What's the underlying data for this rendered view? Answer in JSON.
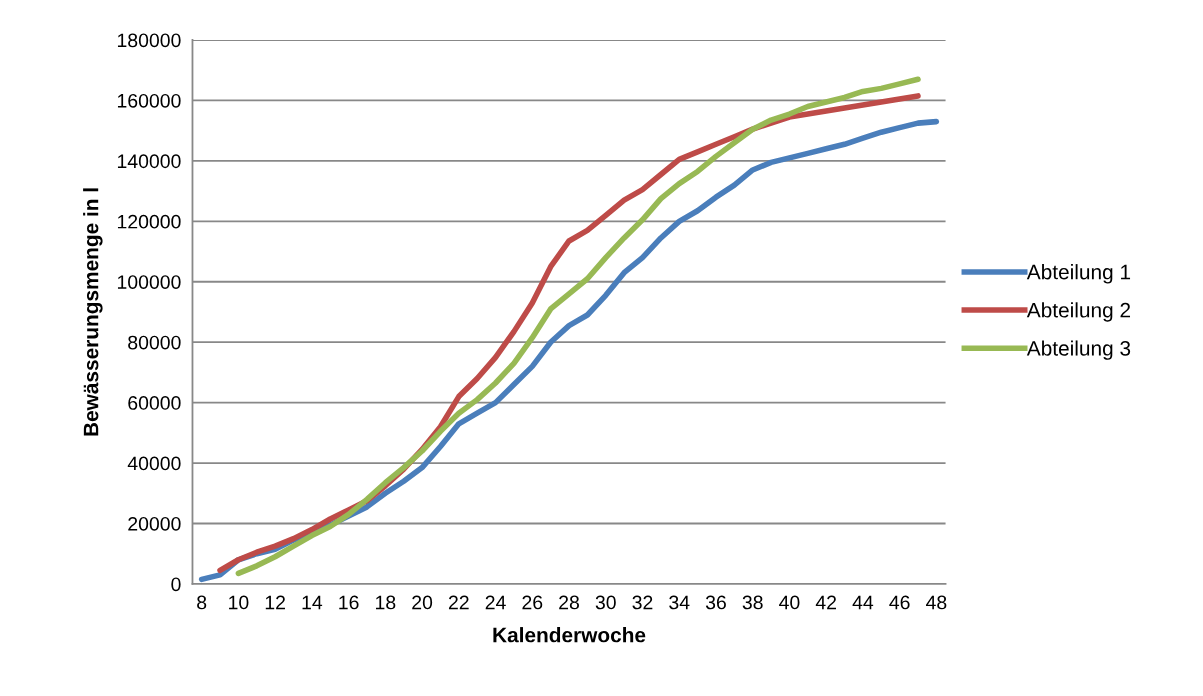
{
  "chart_data": {
    "type": "line",
    "xlabel": "Kalenderwoche",
    "ylabel": "Bewässerungsmenge in l",
    "xlim": [
      7.5,
      48.5
    ],
    "xticks": [
      8,
      10,
      12,
      14,
      16,
      18,
      20,
      22,
      24,
      26,
      28,
      30,
      32,
      34,
      36,
      38,
      40,
      42,
      44,
      46,
      48
    ],
    "ylim": [
      0,
      180000
    ],
    "yticks": [
      0,
      20000,
      40000,
      60000,
      80000,
      100000,
      120000,
      140000,
      160000,
      180000
    ],
    "grid": "y",
    "legend": "right",
    "marker": "none",
    "line_style": "solid",
    "series": [
      {
        "name": "Abteilung 1",
        "color": "#4a7ebb",
        "x": [
          8,
          9,
          10,
          11,
          12,
          13,
          14,
          15,
          16,
          17,
          18,
          19,
          20,
          21,
          22,
          23,
          24,
          25,
          26,
          27,
          28,
          29,
          30,
          31,
          32,
          33,
          34,
          35,
          36,
          37,
          38,
          39,
          40,
          41,
          42,
          43,
          44,
          45,
          46,
          47,
          48
        ],
        "values": [
          1500,
          3000,
          8000,
          10000,
          11500,
          14500,
          17000,
          19500,
          22500,
          25500,
          30000,
          34000,
          38500,
          45500,
          53000,
          56500,
          60000,
          66000,
          72000,
          80000,
          85500,
          89000,
          95500,
          103000,
          108000,
          114500,
          120000,
          123500,
          128000,
          132000,
          137000,
          139500,
          141000,
          142500,
          144000,
          145500,
          147500,
          149500,
          151000,
          152500,
          153000
        ]
      },
      {
        "name": "Abteilung 2",
        "color": "#be4b48",
        "x": [
          9,
          10,
          11,
          12,
          13,
          14,
          15,
          16,
          17,
          18,
          19,
          20,
          21,
          22,
          23,
          24,
          25,
          26,
          27,
          28,
          29,
          30,
          31,
          32,
          33,
          34,
          35,
          36,
          37,
          38,
          39,
          40,
          41,
          42,
          43,
          44,
          45,
          46,
          47
        ],
        "values": [
          4500,
          8000,
          10500,
          12500,
          15000,
          18000,
          21500,
          24500,
          27500,
          32500,
          38000,
          44500,
          52000,
          62000,
          68000,
          75000,
          83500,
          93000,
          105000,
          113500,
          117000,
          122000,
          127000,
          130500,
          135500,
          140500,
          143000,
          145500,
          148000,
          150500,
          152500,
          154500,
          155500,
          156500,
          157500,
          158500,
          159500,
          160500,
          161500
        ]
      },
      {
        "name": "Abteilung 3",
        "color": "#98b954",
        "x": [
          10,
          11,
          12,
          13,
          14,
          15,
          16,
          17,
          18,
          19,
          20,
          21,
          22,
          23,
          24,
          25,
          26,
          27,
          28,
          29,
          30,
          31,
          32,
          33,
          34,
          35,
          36,
          37,
          38,
          39,
          40,
          41,
          42,
          43,
          44,
          45,
          46,
          47
        ],
        "values": [
          3500,
          6000,
          9000,
          12500,
          16000,
          19000,
          23000,
          28000,
          33500,
          38500,
          44000,
          50500,
          56500,
          61000,
          66500,
          73000,
          81500,
          91000,
          96000,
          101000,
          108000,
          114500,
          120500,
          127500,
          132500,
          136500,
          141500,
          146000,
          150500,
          153500,
          155500,
          158000,
          159500,
          161000,
          163000,
          164000,
          165500,
          167000
        ]
      }
    ]
  }
}
